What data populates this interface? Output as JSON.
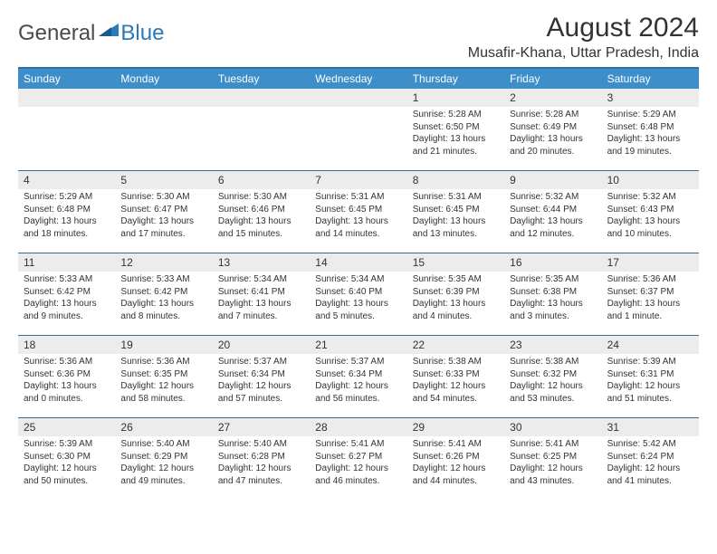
{
  "logo": {
    "general": "General",
    "blue": "Blue"
  },
  "title": "August 2024",
  "location": "Musafir-Khana, Uttar Pradesh, India",
  "colors": {
    "header_bar": "#3d8ec9",
    "divider": "#2a6fa8",
    "daynum_bg": "#ececec",
    "text": "#333333",
    "logo_gray": "#4a4a4a",
    "logo_blue": "#2a7ab8",
    "background": "#ffffff"
  },
  "weekdays": [
    "Sunday",
    "Monday",
    "Tuesday",
    "Wednesday",
    "Thursday",
    "Friday",
    "Saturday"
  ],
  "weeks": [
    [
      {
        "n": "",
        "sr": "",
        "ss": "",
        "d1": "",
        "d2": ""
      },
      {
        "n": "",
        "sr": "",
        "ss": "",
        "d1": "",
        "d2": ""
      },
      {
        "n": "",
        "sr": "",
        "ss": "",
        "d1": "",
        "d2": ""
      },
      {
        "n": "",
        "sr": "",
        "ss": "",
        "d1": "",
        "d2": ""
      },
      {
        "n": "1",
        "sr": "Sunrise: 5:28 AM",
        "ss": "Sunset: 6:50 PM",
        "d1": "Daylight: 13 hours",
        "d2": "and 21 minutes."
      },
      {
        "n": "2",
        "sr": "Sunrise: 5:28 AM",
        "ss": "Sunset: 6:49 PM",
        "d1": "Daylight: 13 hours",
        "d2": "and 20 minutes."
      },
      {
        "n": "3",
        "sr": "Sunrise: 5:29 AM",
        "ss": "Sunset: 6:48 PM",
        "d1": "Daylight: 13 hours",
        "d2": "and 19 minutes."
      }
    ],
    [
      {
        "n": "4",
        "sr": "Sunrise: 5:29 AM",
        "ss": "Sunset: 6:48 PM",
        "d1": "Daylight: 13 hours",
        "d2": "and 18 minutes."
      },
      {
        "n": "5",
        "sr": "Sunrise: 5:30 AM",
        "ss": "Sunset: 6:47 PM",
        "d1": "Daylight: 13 hours",
        "d2": "and 17 minutes."
      },
      {
        "n": "6",
        "sr": "Sunrise: 5:30 AM",
        "ss": "Sunset: 6:46 PM",
        "d1": "Daylight: 13 hours",
        "d2": "and 15 minutes."
      },
      {
        "n": "7",
        "sr": "Sunrise: 5:31 AM",
        "ss": "Sunset: 6:45 PM",
        "d1": "Daylight: 13 hours",
        "d2": "and 14 minutes."
      },
      {
        "n": "8",
        "sr": "Sunrise: 5:31 AM",
        "ss": "Sunset: 6:45 PM",
        "d1": "Daylight: 13 hours",
        "d2": "and 13 minutes."
      },
      {
        "n": "9",
        "sr": "Sunrise: 5:32 AM",
        "ss": "Sunset: 6:44 PM",
        "d1": "Daylight: 13 hours",
        "d2": "and 12 minutes."
      },
      {
        "n": "10",
        "sr": "Sunrise: 5:32 AM",
        "ss": "Sunset: 6:43 PM",
        "d1": "Daylight: 13 hours",
        "d2": "and 10 minutes."
      }
    ],
    [
      {
        "n": "11",
        "sr": "Sunrise: 5:33 AM",
        "ss": "Sunset: 6:42 PM",
        "d1": "Daylight: 13 hours",
        "d2": "and 9 minutes."
      },
      {
        "n": "12",
        "sr": "Sunrise: 5:33 AM",
        "ss": "Sunset: 6:42 PM",
        "d1": "Daylight: 13 hours",
        "d2": "and 8 minutes."
      },
      {
        "n": "13",
        "sr": "Sunrise: 5:34 AM",
        "ss": "Sunset: 6:41 PM",
        "d1": "Daylight: 13 hours",
        "d2": "and 7 minutes."
      },
      {
        "n": "14",
        "sr": "Sunrise: 5:34 AM",
        "ss": "Sunset: 6:40 PM",
        "d1": "Daylight: 13 hours",
        "d2": "and 5 minutes."
      },
      {
        "n": "15",
        "sr": "Sunrise: 5:35 AM",
        "ss": "Sunset: 6:39 PM",
        "d1": "Daylight: 13 hours",
        "d2": "and 4 minutes."
      },
      {
        "n": "16",
        "sr": "Sunrise: 5:35 AM",
        "ss": "Sunset: 6:38 PM",
        "d1": "Daylight: 13 hours",
        "d2": "and 3 minutes."
      },
      {
        "n": "17",
        "sr": "Sunrise: 5:36 AM",
        "ss": "Sunset: 6:37 PM",
        "d1": "Daylight: 13 hours",
        "d2": "and 1 minute."
      }
    ],
    [
      {
        "n": "18",
        "sr": "Sunrise: 5:36 AM",
        "ss": "Sunset: 6:36 PM",
        "d1": "Daylight: 13 hours",
        "d2": "and 0 minutes."
      },
      {
        "n": "19",
        "sr": "Sunrise: 5:36 AM",
        "ss": "Sunset: 6:35 PM",
        "d1": "Daylight: 12 hours",
        "d2": "and 58 minutes."
      },
      {
        "n": "20",
        "sr": "Sunrise: 5:37 AM",
        "ss": "Sunset: 6:34 PM",
        "d1": "Daylight: 12 hours",
        "d2": "and 57 minutes."
      },
      {
        "n": "21",
        "sr": "Sunrise: 5:37 AM",
        "ss": "Sunset: 6:34 PM",
        "d1": "Daylight: 12 hours",
        "d2": "and 56 minutes."
      },
      {
        "n": "22",
        "sr": "Sunrise: 5:38 AM",
        "ss": "Sunset: 6:33 PM",
        "d1": "Daylight: 12 hours",
        "d2": "and 54 minutes."
      },
      {
        "n": "23",
        "sr": "Sunrise: 5:38 AM",
        "ss": "Sunset: 6:32 PM",
        "d1": "Daylight: 12 hours",
        "d2": "and 53 minutes."
      },
      {
        "n": "24",
        "sr": "Sunrise: 5:39 AM",
        "ss": "Sunset: 6:31 PM",
        "d1": "Daylight: 12 hours",
        "d2": "and 51 minutes."
      }
    ],
    [
      {
        "n": "25",
        "sr": "Sunrise: 5:39 AM",
        "ss": "Sunset: 6:30 PM",
        "d1": "Daylight: 12 hours",
        "d2": "and 50 minutes."
      },
      {
        "n": "26",
        "sr": "Sunrise: 5:40 AM",
        "ss": "Sunset: 6:29 PM",
        "d1": "Daylight: 12 hours",
        "d2": "and 49 minutes."
      },
      {
        "n": "27",
        "sr": "Sunrise: 5:40 AM",
        "ss": "Sunset: 6:28 PM",
        "d1": "Daylight: 12 hours",
        "d2": "and 47 minutes."
      },
      {
        "n": "28",
        "sr": "Sunrise: 5:41 AM",
        "ss": "Sunset: 6:27 PM",
        "d1": "Daylight: 12 hours",
        "d2": "and 46 minutes."
      },
      {
        "n": "29",
        "sr": "Sunrise: 5:41 AM",
        "ss": "Sunset: 6:26 PM",
        "d1": "Daylight: 12 hours",
        "d2": "and 44 minutes."
      },
      {
        "n": "30",
        "sr": "Sunrise: 5:41 AM",
        "ss": "Sunset: 6:25 PM",
        "d1": "Daylight: 12 hours",
        "d2": "and 43 minutes."
      },
      {
        "n": "31",
        "sr": "Sunrise: 5:42 AM",
        "ss": "Sunset: 6:24 PM",
        "d1": "Daylight: 12 hours",
        "d2": "and 41 minutes."
      }
    ]
  ]
}
